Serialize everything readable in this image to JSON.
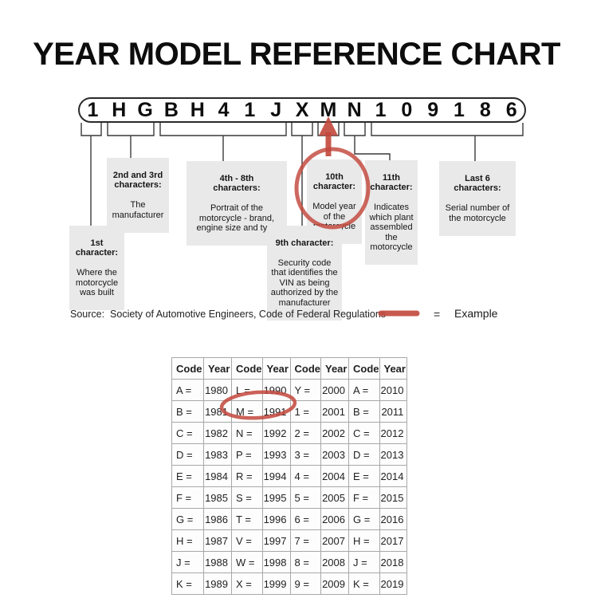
{
  "title": "YEAR MODEL REFERENCE CHART",
  "vin": {
    "characters": [
      "1",
      "H",
      "G",
      "B",
      "H",
      "4",
      "1",
      "J",
      "X",
      "M",
      "N",
      "1",
      "0",
      "9",
      "1",
      "8",
      "6"
    ]
  },
  "callouts": {
    "first": {
      "heading": "1st\ncharacter:",
      "body": "Where the\nmotorcycle\nwas built"
    },
    "second_third": {
      "heading": "2nd and 3rd\ncharacters:",
      "body": "The\nmanufacturer"
    },
    "fourth_eighth": {
      "heading": "4th - 8th\ncharacters:",
      "body": "Portrait of the\nmotorcycle - brand,\nengine size and type"
    },
    "ninth": {
      "heading": "9th character:",
      "body": "Security code\nthat identifies the\nVIN as being\nauthorized by the\nmanufacturer"
    },
    "tenth": {
      "heading": "10th\ncharacter:",
      "body": "Model year\nof the\nmotorcycle"
    },
    "eleventh": {
      "heading": "11th\ncharacter:",
      "body": "Indicates\nwhich plant\nassembled\nthe\nmotorcycle"
    },
    "last_six": {
      "heading": "Last 6\ncharacters:",
      "body": "Serial number of\nthe motorcycle"
    }
  },
  "source_line": "Source:  Society of Automotive Engineers, Code of Federal Regulations",
  "legend": {
    "equals": "=",
    "label": "Example"
  },
  "table": {
    "headers": [
      "Code",
      "Year",
      "Code",
      "Year",
      "Code",
      "Year",
      "Code",
      "Year"
    ],
    "rows": [
      [
        "A =",
        "1980",
        "L =",
        "1990",
        "Y =",
        "2000",
        "A =",
        "2010"
      ],
      [
        "B =",
        "1981",
        "M =",
        "1991",
        "1 =",
        "2001",
        "B =",
        "2011"
      ],
      [
        "C =",
        "1982",
        "N =",
        "1992",
        "2 =",
        "2002",
        "C =",
        "2012"
      ],
      [
        "D =",
        "1983",
        "P =",
        "1993",
        "3 =",
        "2003",
        "D =",
        "2013"
      ],
      [
        "E =",
        "1984",
        "R =",
        "1994",
        "4 =",
        "2004",
        "E =",
        "2014"
      ],
      [
        "F =",
        "1985",
        "S =",
        "1995",
        "5 =",
        "2005",
        "F =",
        "2015"
      ],
      [
        "G =",
        "1986",
        "T =",
        "1996",
        "6 =",
        "2006",
        "G =",
        "2016"
      ],
      [
        "H =",
        "1987",
        "V =",
        "1997",
        "7 =",
        "2007",
        "H =",
        "2017"
      ],
      [
        "J =",
        "1988",
        "W =",
        "1998",
        "8 =",
        "2008",
        "J =",
        "2018"
      ],
      [
        "K =",
        "1989",
        "X =",
        "1999",
        "9 =",
        "2009",
        "K =",
        "2019"
      ]
    ],
    "highlighted_cell": "M = 1991"
  },
  "colors": {
    "accent_red": "#c2473c",
    "callout_bg": "#e9e9e9"
  }
}
